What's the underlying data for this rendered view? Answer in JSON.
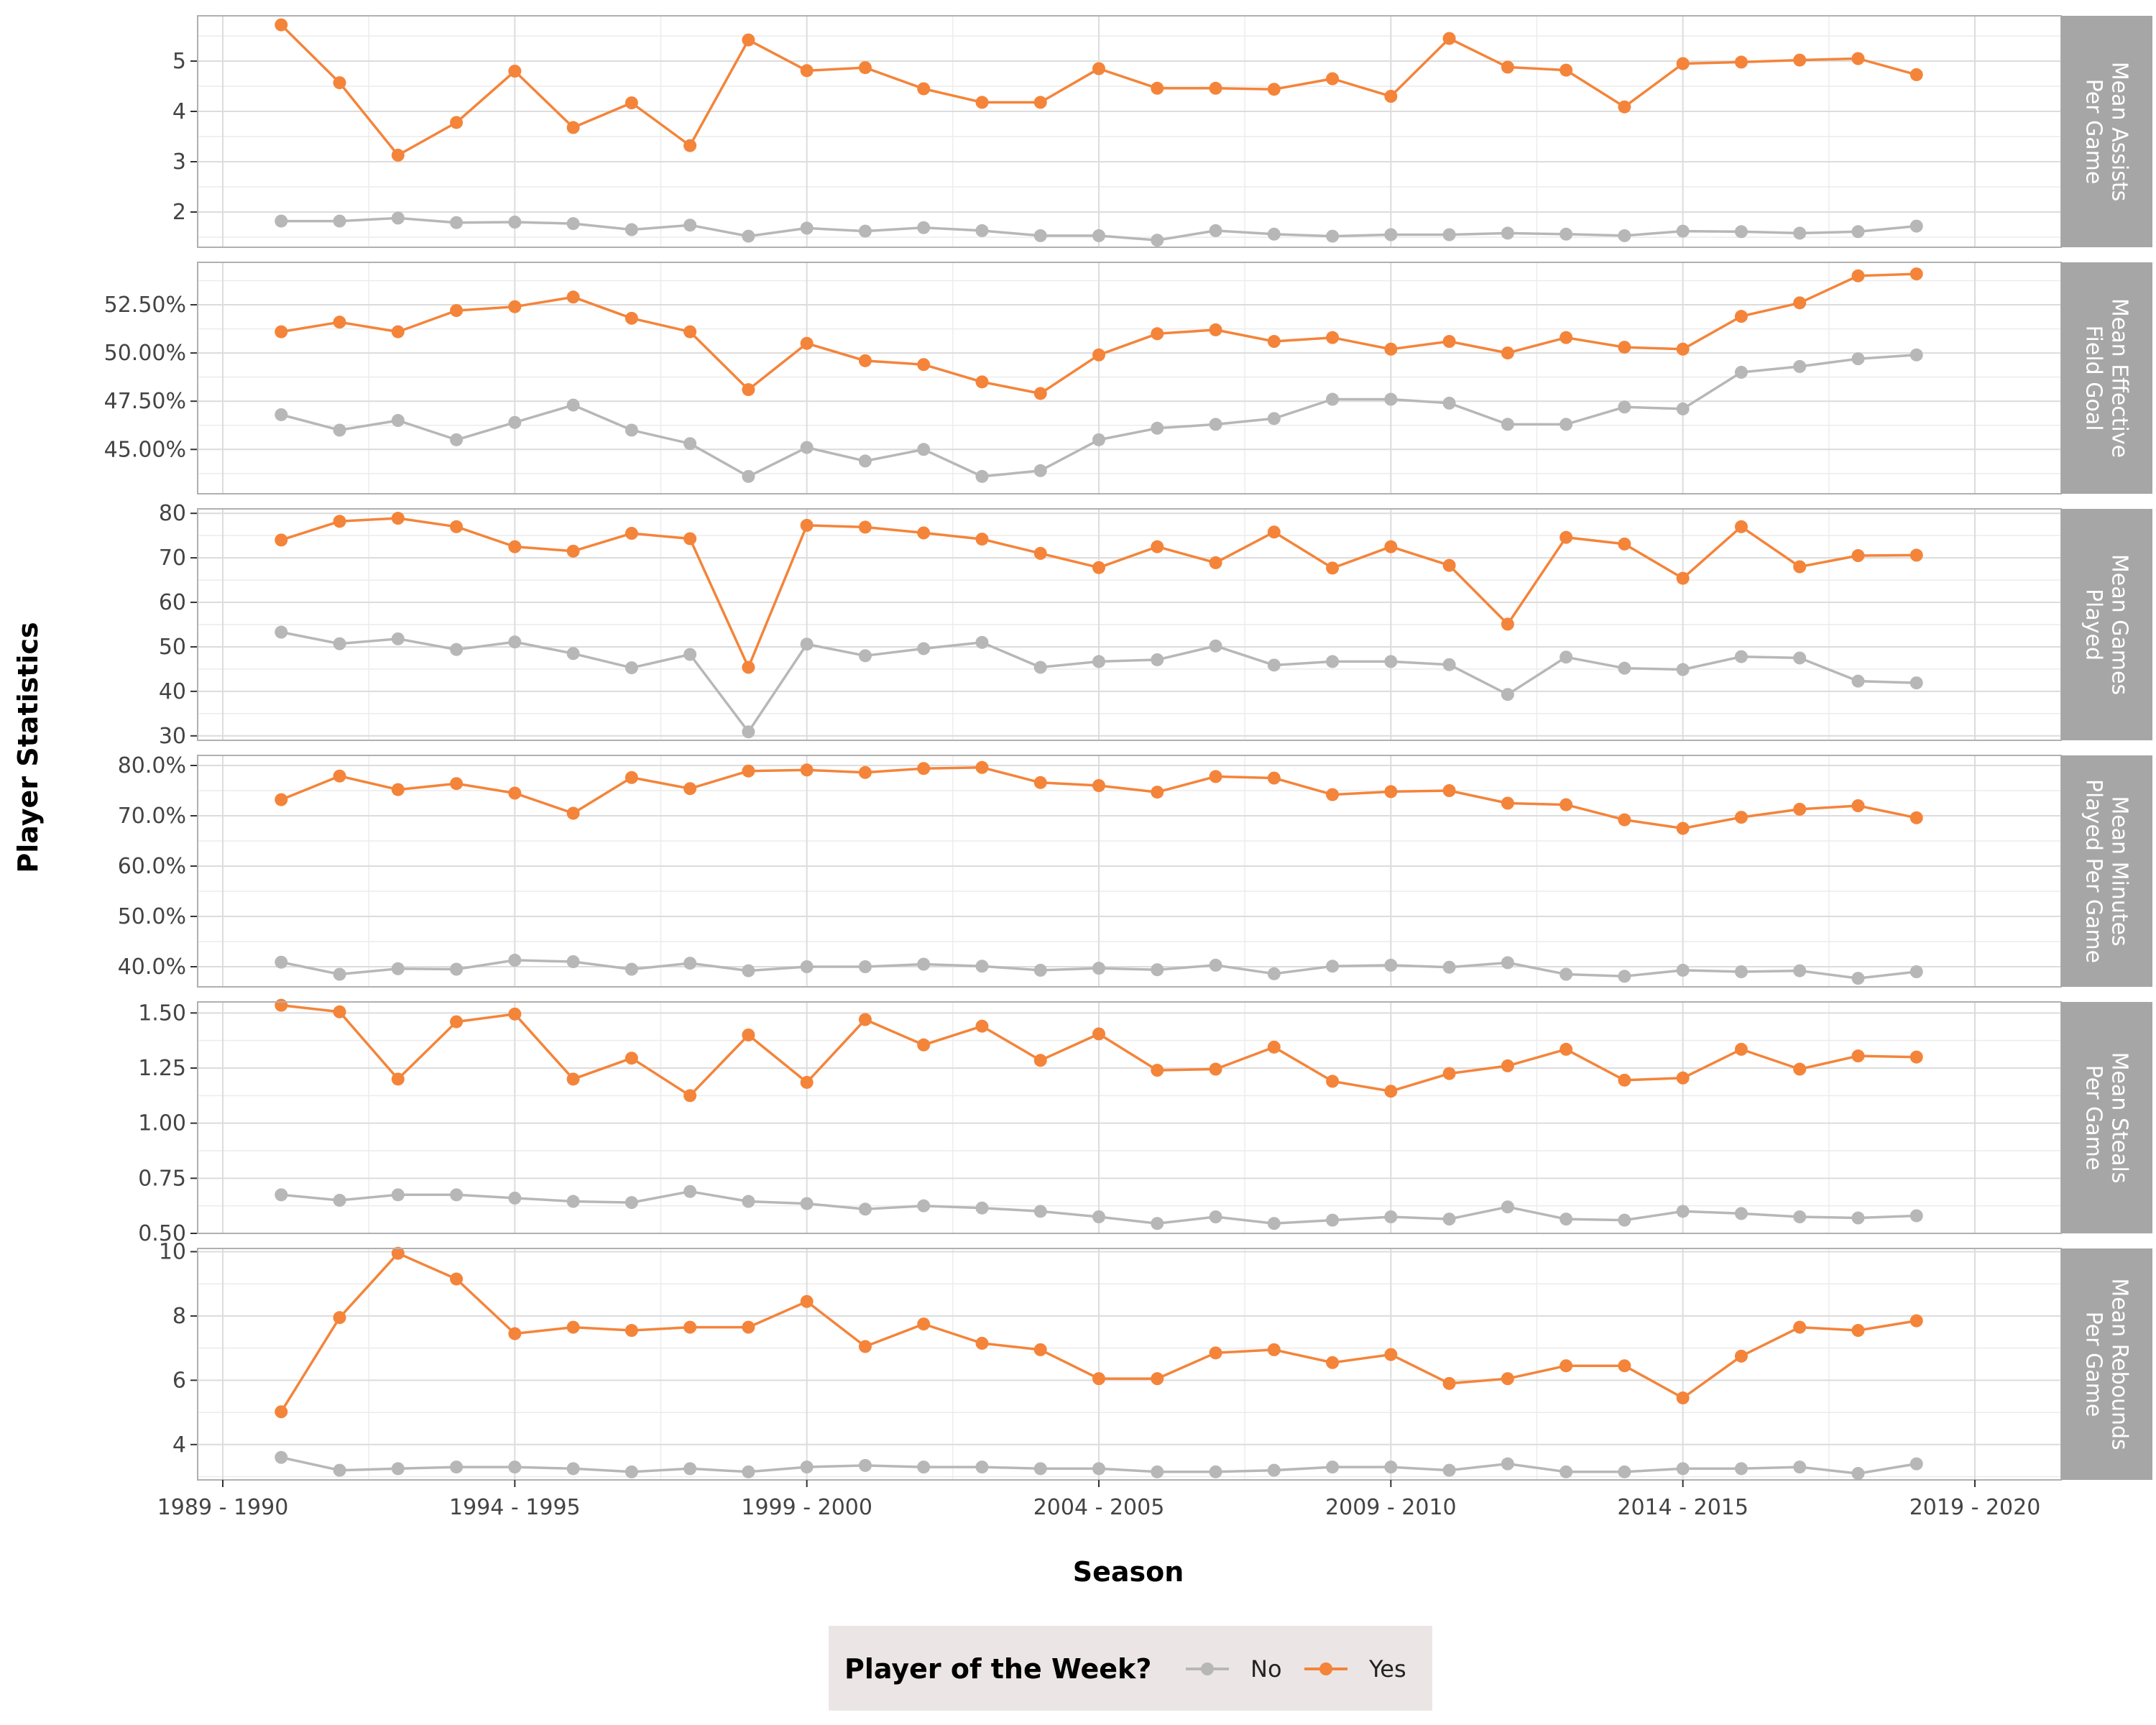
{
  "chart_data": {
    "type": "line",
    "xlabel": "Season",
    "ylabel": "Player Statistics",
    "grid": true,
    "legend_placement": "bottom",
    "legend": {
      "title": "Player of the Week?",
      "entries": [
        "No",
        "Yes"
      ]
    },
    "x_tick_labels": [
      "1989 - 1990",
      "1994 - 1995",
      "1999 - 2000",
      "2004 - 2005",
      "2009 - 2010",
      "2014 - 2015",
      "2019 - 2020"
    ],
    "colors": {
      "No": "#b7b7b7",
      "Yes": "#f4843a",
      "strip": "#a6a6a6",
      "legend_bg": "#ebe6e5"
    },
    "x": [
      "1990 - 1991",
      "1991 - 1992",
      "1992 - 1993",
      "1993 - 1994",
      "1994 - 1995",
      "1995 - 1996",
      "1996 - 1997",
      "1997 - 1998",
      "1998 - 1999",
      "1999 - 2000",
      "2000 - 2001",
      "2001 - 2002",
      "2002 - 2003",
      "2003 - 2004",
      "2004 - 2005",
      "2005 - 2006",
      "2006 - 2007",
      "2007 - 2008",
      "2008 - 2009",
      "2009 - 2010",
      "2010 - 2011",
      "2011 - 2012",
      "2012 - 2013",
      "2013 - 2014",
      "2014 - 2015",
      "2015 - 2016",
      "2016 - 2017",
      "2017 - 2018",
      "2018 - 2019"
    ],
    "panels": [
      {
        "label": "Mean Assists\nPer Game",
        "ylim": [
          1.3,
          5.9
        ],
        "ticks": [
          2,
          3,
          4,
          5
        ],
        "tick_labels": [
          "2",
          "3",
          "4",
          "5"
        ],
        "series": [
          {
            "name": "No",
            "values": [
              1.82,
              1.82,
              1.88,
              1.79,
              1.8,
              1.77,
              1.65,
              1.74,
              1.52,
              1.68,
              1.62,
              1.69,
              1.63,
              1.53,
              1.53,
              1.44,
              1.63,
              1.56,
              1.52,
              1.55,
              1.55,
              1.58,
              1.56,
              1.53,
              1.62,
              1.61,
              1.58,
              1.61,
              1.72
            ]
          },
          {
            "name": "Yes",
            "values": [
              5.72,
              4.57,
              3.13,
              3.78,
              4.8,
              3.68,
              4.17,
              3.32,
              5.42,
              4.81,
              4.87,
              4.45,
              4.18,
              4.18,
              4.85,
              4.46,
              4.46,
              4.44,
              4.65,
              4.3,
              5.45,
              4.88,
              4.82,
              4.09,
              4.95,
              4.98,
              5.02,
              5.05,
              4.73
            ]
          }
        ]
      },
      {
        "label": "Mean Effective\nField Goal",
        "ylim": [
          0.427,
          0.547
        ],
        "ticks": [
          0.45,
          0.475,
          0.5,
          0.525
        ],
        "tick_labels": [
          "45.00%",
          "47.50%",
          "50.00%",
          "52.50%"
        ],
        "series": [
          {
            "name": "No",
            "values": [
              0.468,
              0.46,
              0.465,
              0.455,
              0.464,
              0.473,
              0.46,
              0.453,
              0.436,
              0.451,
              0.444,
              0.45,
              0.436,
              0.439,
              0.455,
              0.461,
              0.463,
              0.466,
              0.476,
              0.476,
              0.474,
              0.463,
              0.463,
              0.472,
              0.471,
              0.49,
              0.493,
              0.497,
              0.499
            ]
          },
          {
            "name": "Yes",
            "values": [
              0.511,
              0.516,
              0.511,
              0.522,
              0.524,
              0.529,
              0.518,
              0.511,
              0.481,
              0.505,
              0.496,
              0.494,
              0.485,
              0.479,
              0.499,
              0.51,
              0.512,
              0.506,
              0.508,
              0.502,
              0.506,
              0.5,
              0.508,
              0.503,
              0.502,
              0.519,
              0.526,
              0.54,
              0.541
            ]
          }
        ]
      },
      {
        "label": "Mean Games\nPlayed",
        "ylim": [
          29,
          81
        ],
        "ticks": [
          30,
          40,
          50,
          60,
          70,
          80
        ],
        "tick_labels": [
          "30",
          "40",
          "50",
          "60",
          "70",
          "80"
        ],
        "series": [
          {
            "name": "No",
            "values": [
              53.3,
              50.7,
              51.8,
              49.4,
              51.1,
              48.5,
              45.3,
              48.3,
              30.9,
              50.6,
              48.0,
              49.6,
              51.0,
              45.4,
              46.7,
              47.1,
              50.2,
              45.9,
              46.7,
              46.7,
              46.0,
              39.3,
              47.7,
              45.2,
              44.9,
              47.8,
              47.5,
              42.3,
              41.9
            ]
          },
          {
            "name": "Yes",
            "values": [
              74.0,
              78.2,
              78.9,
              77.0,
              72.5,
              71.5,
              75.5,
              74.3,
              45.4,
              77.3,
              76.9,
              75.6,
              74.2,
              71.0,
              67.8,
              72.5,
              68.9,
              75.8,
              67.7,
              72.5,
              68.3,
              55.1,
              74.6,
              73.1,
              65.4,
              77.0,
              68.0,
              70.5,
              70.6
            ]
          }
        ]
      },
      {
        "label": "Mean Minutes\nPlayed Per Game",
        "ylim": [
          0.36,
          0.82
        ],
        "ticks": [
          0.4,
          0.5,
          0.6,
          0.7,
          0.8
        ],
        "tick_labels": [
          "40.0%",
          "50.0%",
          "60.0%",
          "70.0%",
          "80.0%"
        ],
        "series": [
          {
            "name": "No",
            "values": [
              0.409,
              0.385,
              0.396,
              0.395,
              0.413,
              0.41,
              0.395,
              0.407,
              0.392,
              0.4,
              0.4,
              0.405,
              0.401,
              0.393,
              0.397,
              0.394,
              0.403,
              0.386,
              0.401,
              0.403,
              0.399,
              0.408,
              0.385,
              0.381,
              0.393,
              0.39,
              0.392,
              0.377,
              0.39
            ]
          },
          {
            "name": "Yes",
            "values": [
              0.732,
              0.779,
              0.752,
              0.764,
              0.745,
              0.705,
              0.776,
              0.754,
              0.789,
              0.791,
              0.786,
              0.794,
              0.796,
              0.766,
              0.76,
              0.747,
              0.778,
              0.775,
              0.742,
              0.748,
              0.75,
              0.725,
              0.722,
              0.692,
              0.675,
              0.697,
              0.713,
              0.72,
              0.696
            ]
          }
        ]
      },
      {
        "label": "Mean Steals\nPer Game",
        "ylim": [
          0.5,
          1.55
        ],
        "ticks": [
          0.5,
          0.75,
          1.0,
          1.25,
          1.5
        ],
        "tick_labels": [
          "0.50",
          "0.75",
          "1.00",
          "1.25",
          "1.50"
        ],
        "series": [
          {
            "name": "No",
            "values": [
              0.675,
              0.65,
              0.675,
              0.675,
              0.66,
              0.645,
              0.64,
              0.69,
              0.645,
              0.635,
              0.61,
              0.625,
              0.615,
              0.6,
              0.575,
              0.545,
              0.575,
              0.545,
              0.56,
              0.575,
              0.565,
              0.62,
              0.565,
              0.56,
              0.6,
              0.59,
              0.575,
              0.57,
              0.58
            ]
          },
          {
            "name": "Yes",
            "values": [
              1.535,
              1.505,
              1.2,
              1.46,
              1.495,
              1.2,
              1.295,
              1.125,
              1.4,
              1.185,
              1.47,
              1.355,
              1.44,
              1.285,
              1.405,
              1.24,
              1.245,
              1.345,
              1.19,
              1.145,
              1.225,
              1.26,
              1.335,
              1.195,
              1.205,
              1.335,
              1.245,
              1.305,
              1.3
            ]
          }
        ]
      },
      {
        "label": "Mean Rebounds\nPer Game",
        "ylim": [
          2.9,
          10.1
        ],
        "ticks": [
          4,
          6,
          8,
          10
        ],
        "tick_labels": [
          "4",
          "6",
          "8",
          "10"
        ],
        "series": [
          {
            "name": "No",
            "values": [
              3.6,
              3.2,
              3.25,
              3.3,
              3.3,
              3.25,
              3.15,
              3.25,
              3.15,
              3.3,
              3.35,
              3.3,
              3.3,
              3.25,
              3.25,
              3.15,
              3.15,
              3.2,
              3.3,
              3.3,
              3.2,
              3.4,
              3.15,
              3.15,
              3.25,
              3.25,
              3.3,
              3.1,
              3.4
            ]
          },
          {
            "name": "Yes",
            "values": [
              5.02,
              7.95,
              9.95,
              9.15,
              7.45,
              7.65,
              7.55,
              7.65,
              7.65,
              8.45,
              7.05,
              7.75,
              7.15,
              6.95,
              6.05,
              6.05,
              6.85,
              6.95,
              6.55,
              6.8,
              5.9,
              6.05,
              6.45,
              6.45,
              5.45,
              6.75,
              7.65,
              7.55,
              7.85
            ]
          }
        ]
      }
    ]
  }
}
